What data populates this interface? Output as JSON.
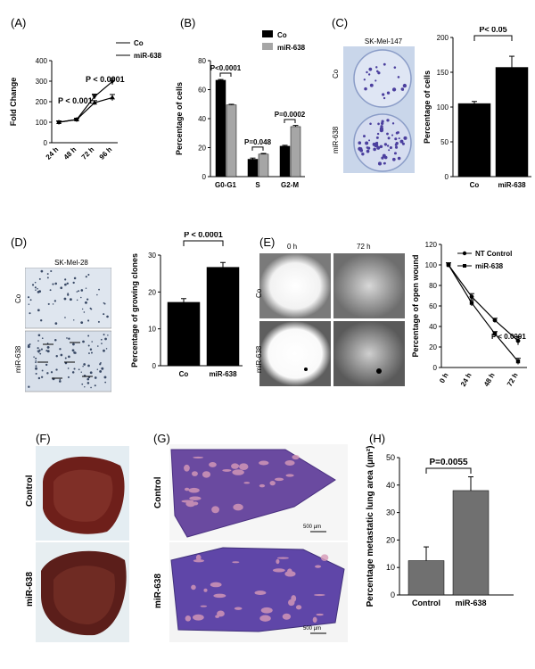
{
  "panels": {
    "A": {
      "label": "(A)"
    },
    "B": {
      "label": "(B)"
    },
    "C": {
      "label": "(C)",
      "photo_title": "SK-Mel-147",
      "row_labels": [
        "Co",
        "miR-638"
      ]
    },
    "D": {
      "label": "(D)",
      "photo_title": "SK-Mel-28",
      "row_labels": [
        "Co",
        "miR-638"
      ]
    },
    "E": {
      "label": "(E)",
      "col_labels": [
        "0 h",
        "72 h"
      ],
      "row_labels": [
        "Co",
        "miR-638"
      ]
    },
    "F": {
      "label": "(F)",
      "row_labels": [
        "Control",
        "miR-638"
      ]
    },
    "G": {
      "label": "(G)",
      "row_labels": [
        "Control",
        "miR-638"
      ],
      "scalebar": "500 µm"
    },
    "H": {
      "label": "(H)"
    }
  },
  "colors": {
    "black": "#000000",
    "gray": "#a6a6a6",
    "darkgray": "#707070",
    "tissue": "#7a2a2a",
    "stain": "#6a4aa0"
  },
  "chart_data": [
    {
      "id": "A",
      "type": "line",
      "x": [
        "24 h",
        "48 h",
        "72 h",
        "96 h"
      ],
      "ylabel": "Fold Change",
      "ylim": [
        0,
        400
      ],
      "yticks": [
        0,
        100,
        200,
        300,
        400
      ],
      "series": [
        {
          "name": "Co",
          "values": [
            100,
            113,
            195,
            220
          ],
          "err": [
            5,
            5,
            10,
            15
          ]
        },
        {
          "name": "miR-638",
          "values": [
            100,
            113,
            225,
            298
          ],
          "err": [
            5,
            5,
            12,
            15
          ]
        }
      ],
      "annotations": [
        "P < 0.001",
        "P < 0.0001"
      ]
    },
    {
      "id": "B",
      "type": "bar",
      "categories": [
        "G0-G1",
        "S",
        "G2-M"
      ],
      "ylabel": "Percentage of cells",
      "ylim": [
        0,
        80
      ],
      "yticks": [
        0,
        20,
        40,
        60,
        80
      ],
      "series": [
        {
          "name": "Co",
          "values": [
            66.5,
            12,
            21
          ],
          "err": [
            0.5,
            0.8,
            0.6
          ]
        },
        {
          "name": "miR-638",
          "values": [
            49.5,
            15.5,
            34.5
          ],
          "err": [
            0.4,
            0.5,
            0.8
          ]
        }
      ],
      "annotations": [
        "P<0.0001",
        "P=0.048",
        "P=0.0002"
      ]
    },
    {
      "id": "C",
      "type": "bar",
      "categories": [
        "Co",
        "miR-638"
      ],
      "ylabel": "Percentage of cells",
      "ylim": [
        0,
        200
      ],
      "yticks": [
        0,
        50,
        100,
        150,
        200
      ],
      "values": [
        105,
        157
      ],
      "err": [
        3,
        16
      ],
      "annotations": [
        "P< 0.05"
      ]
    },
    {
      "id": "D",
      "type": "bar",
      "categories": [
        "Co",
        "miR-638"
      ],
      "ylabel": "Percentage of growing clones",
      "ylim": [
        0,
        30
      ],
      "yticks": [
        0,
        10,
        20,
        30
      ],
      "values": [
        17.2,
        26.7
      ],
      "err": [
        1.0,
        1.3
      ],
      "annotations": [
        "P  < 0.0001"
      ]
    },
    {
      "id": "E",
      "type": "line",
      "x": [
        "0 h",
        "24 h",
        "48 h",
        "72 h"
      ],
      "ylabel": "Percentage of open wound",
      "ylim": [
        0,
        120
      ],
      "yticks": [
        0,
        20,
        40,
        60,
        80,
        100,
        120
      ],
      "series": [
        {
          "name": "NT Control",
          "values": [
            100,
            69,
            46,
            26
          ],
          "err": [
            2,
            3,
            2,
            4
          ]
        },
        {
          "name": "miR-638",
          "values": [
            100,
            63,
            33,
            6
          ],
          "err": [
            2,
            3,
            2,
            3
          ]
        }
      ],
      "annotations": [
        "P < 0.0001"
      ]
    },
    {
      "id": "H",
      "type": "bar",
      "categories": [
        "Control",
        "miR-638"
      ],
      "ylabel": "Percentage metastatic lung area (µm²)",
      "ylim": [
        0,
        50
      ],
      "yticks": [
        0,
        10,
        20,
        30,
        40,
        50
      ],
      "values": [
        12.5,
        38
      ],
      "err": [
        5,
        5
      ],
      "annotations": [
        "P=0.0055"
      ]
    }
  ]
}
